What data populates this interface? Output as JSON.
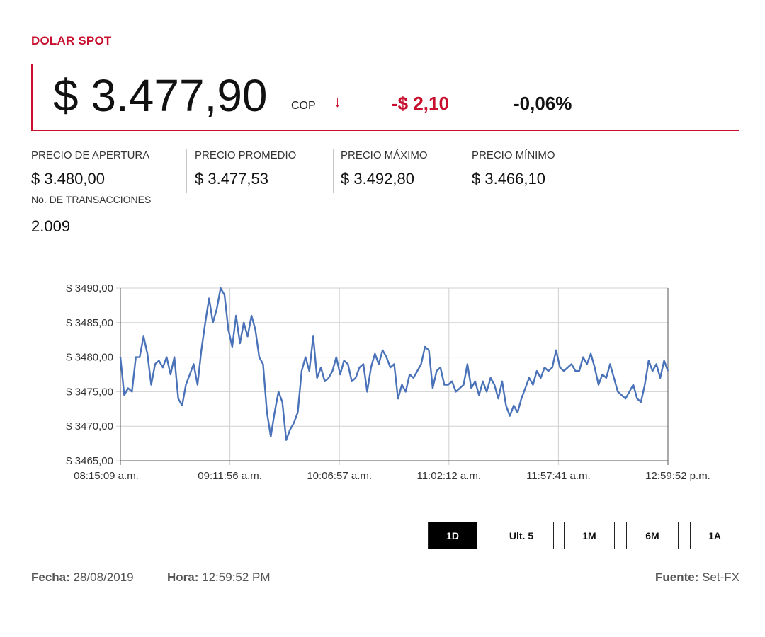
{
  "header": {
    "title": "DOLAR SPOT",
    "price": "$ 3.477,90",
    "currency": "COP",
    "arrow": "↓",
    "change": "-$ 2,10",
    "change_pct": "-0,06%",
    "colors": {
      "accent": "#c8102e",
      "line": "#4a72b8"
    }
  },
  "stats": [
    {
      "label": "PRECIO DE APERTURA",
      "value": "$ 3.480,00"
    },
    {
      "label": "PRECIO PROMEDIO",
      "value": "$ 3.477,53"
    },
    {
      "label": "PRECIO MÁXIMO",
      "value": "$ 3.492,80"
    },
    {
      "label": "PRECIO MÍNIMO",
      "value": "$ 3.466,10"
    }
  ],
  "transactions": {
    "label": "No. DE TRANSACCIONES",
    "value": "2.009"
  },
  "chart_data": {
    "type": "line",
    "title": "",
    "xlabel": "",
    "ylabel": "",
    "ylim": [
      3465,
      3490
    ],
    "yticks": [
      3465,
      3470,
      3475,
      3480,
      3485,
      3490
    ],
    "ytick_labels": [
      "$ 3465,00",
      "$ 3470,00",
      "$ 3475,00",
      "$ 3480,00",
      "$ 3485,00",
      "$ 3490,00"
    ],
    "xticks": [
      "08:15:09 a.m.",
      "09:11:56 a.m.",
      "10:06:57 a.m.",
      "11:02:12 a.m.",
      "11:57:41 a.m.",
      "12:59:52 p.m."
    ],
    "grid": true,
    "series": [
      {
        "values": [
          3480.0,
          3474.5,
          3475.5,
          3475.0,
          3480.0,
          3480.0,
          3483.0,
          3480.5,
          3476.0,
          3479.0,
          3479.5,
          3478.5,
          3480.0,
          3477.5,
          3480.0,
          3474.0,
          3473.0,
          3476.0,
          3477.5,
          3479.0,
          3476.0,
          3481.0,
          3485.0,
          3488.5,
          3485.0,
          3487.0,
          3490.0,
          3489.0,
          3484.0,
          3481.5,
          3486.0,
          3482.0,
          3485.0,
          3483.0,
          3486.0,
          3484.0,
          3480.0,
          3479.0,
          3472.0,
          3468.5,
          3472.0,
          3475.0,
          3473.5,
          3468.0,
          3469.5,
          3470.5,
          3472.0,
          3478.0,
          3480.0,
          3478.0,
          3483.0,
          3477.0,
          3478.5,
          3476.5,
          3477.0,
          3478.0,
          3480.0,
          3477.5,
          3479.5,
          3479.0,
          3476.5,
          3477.0,
          3478.5,
          3479.0,
          3475.0,
          3478.5,
          3480.5,
          3479.0,
          3481.0,
          3480.0,
          3478.5,
          3479.0,
          3474.0,
          3476.0,
          3475.0,
          3477.5,
          3477.0,
          3478.0,
          3479.0,
          3481.5,
          3481.0,
          3475.5,
          3478.0,
          3478.5,
          3476.0,
          3476.0,
          3476.5,
          3475.0,
          3475.5,
          3476.0,
          3479.0,
          3475.5,
          3476.5,
          3474.5,
          3476.5,
          3475.0,
          3477.0,
          3476.0,
          3474.0,
          3476.5,
          3473.0,
          3471.5,
          3473.0,
          3472.0,
          3474.0,
          3475.5,
          3477.0,
          3476.0,
          3478.0,
          3477.0,
          3478.5,
          3478.0,
          3478.5,
          3481.0,
          3478.5,
          3478.0,
          3478.5,
          3479.0,
          3478.0,
          3478.0,
          3480.0,
          3479.0,
          3480.5,
          3478.5,
          3476.0,
          3477.5,
          3477.0,
          3479.0,
          3477.0,
          3475.0,
          3474.5,
          3474.0,
          3475.0,
          3476.0,
          3474.0,
          3473.5,
          3476.0,
          3479.5,
          3478.0,
          3479.0,
          3477.0,
          3479.5,
          3478.0
        ]
      }
    ]
  },
  "ranges": [
    {
      "label": "1D",
      "active": true
    },
    {
      "label": "Ult. 5",
      "active": false
    },
    {
      "label": "1M",
      "active": false
    },
    {
      "label": "6M",
      "active": false
    },
    {
      "label": "1A",
      "active": false
    }
  ],
  "footer": {
    "fecha_label": "Fecha:",
    "fecha_value": "28/08/2019",
    "hora_label": "Hora:",
    "hora_value": "12:59:52 PM",
    "fuente_label": "Fuente:",
    "fuente_value": "Set-FX"
  }
}
